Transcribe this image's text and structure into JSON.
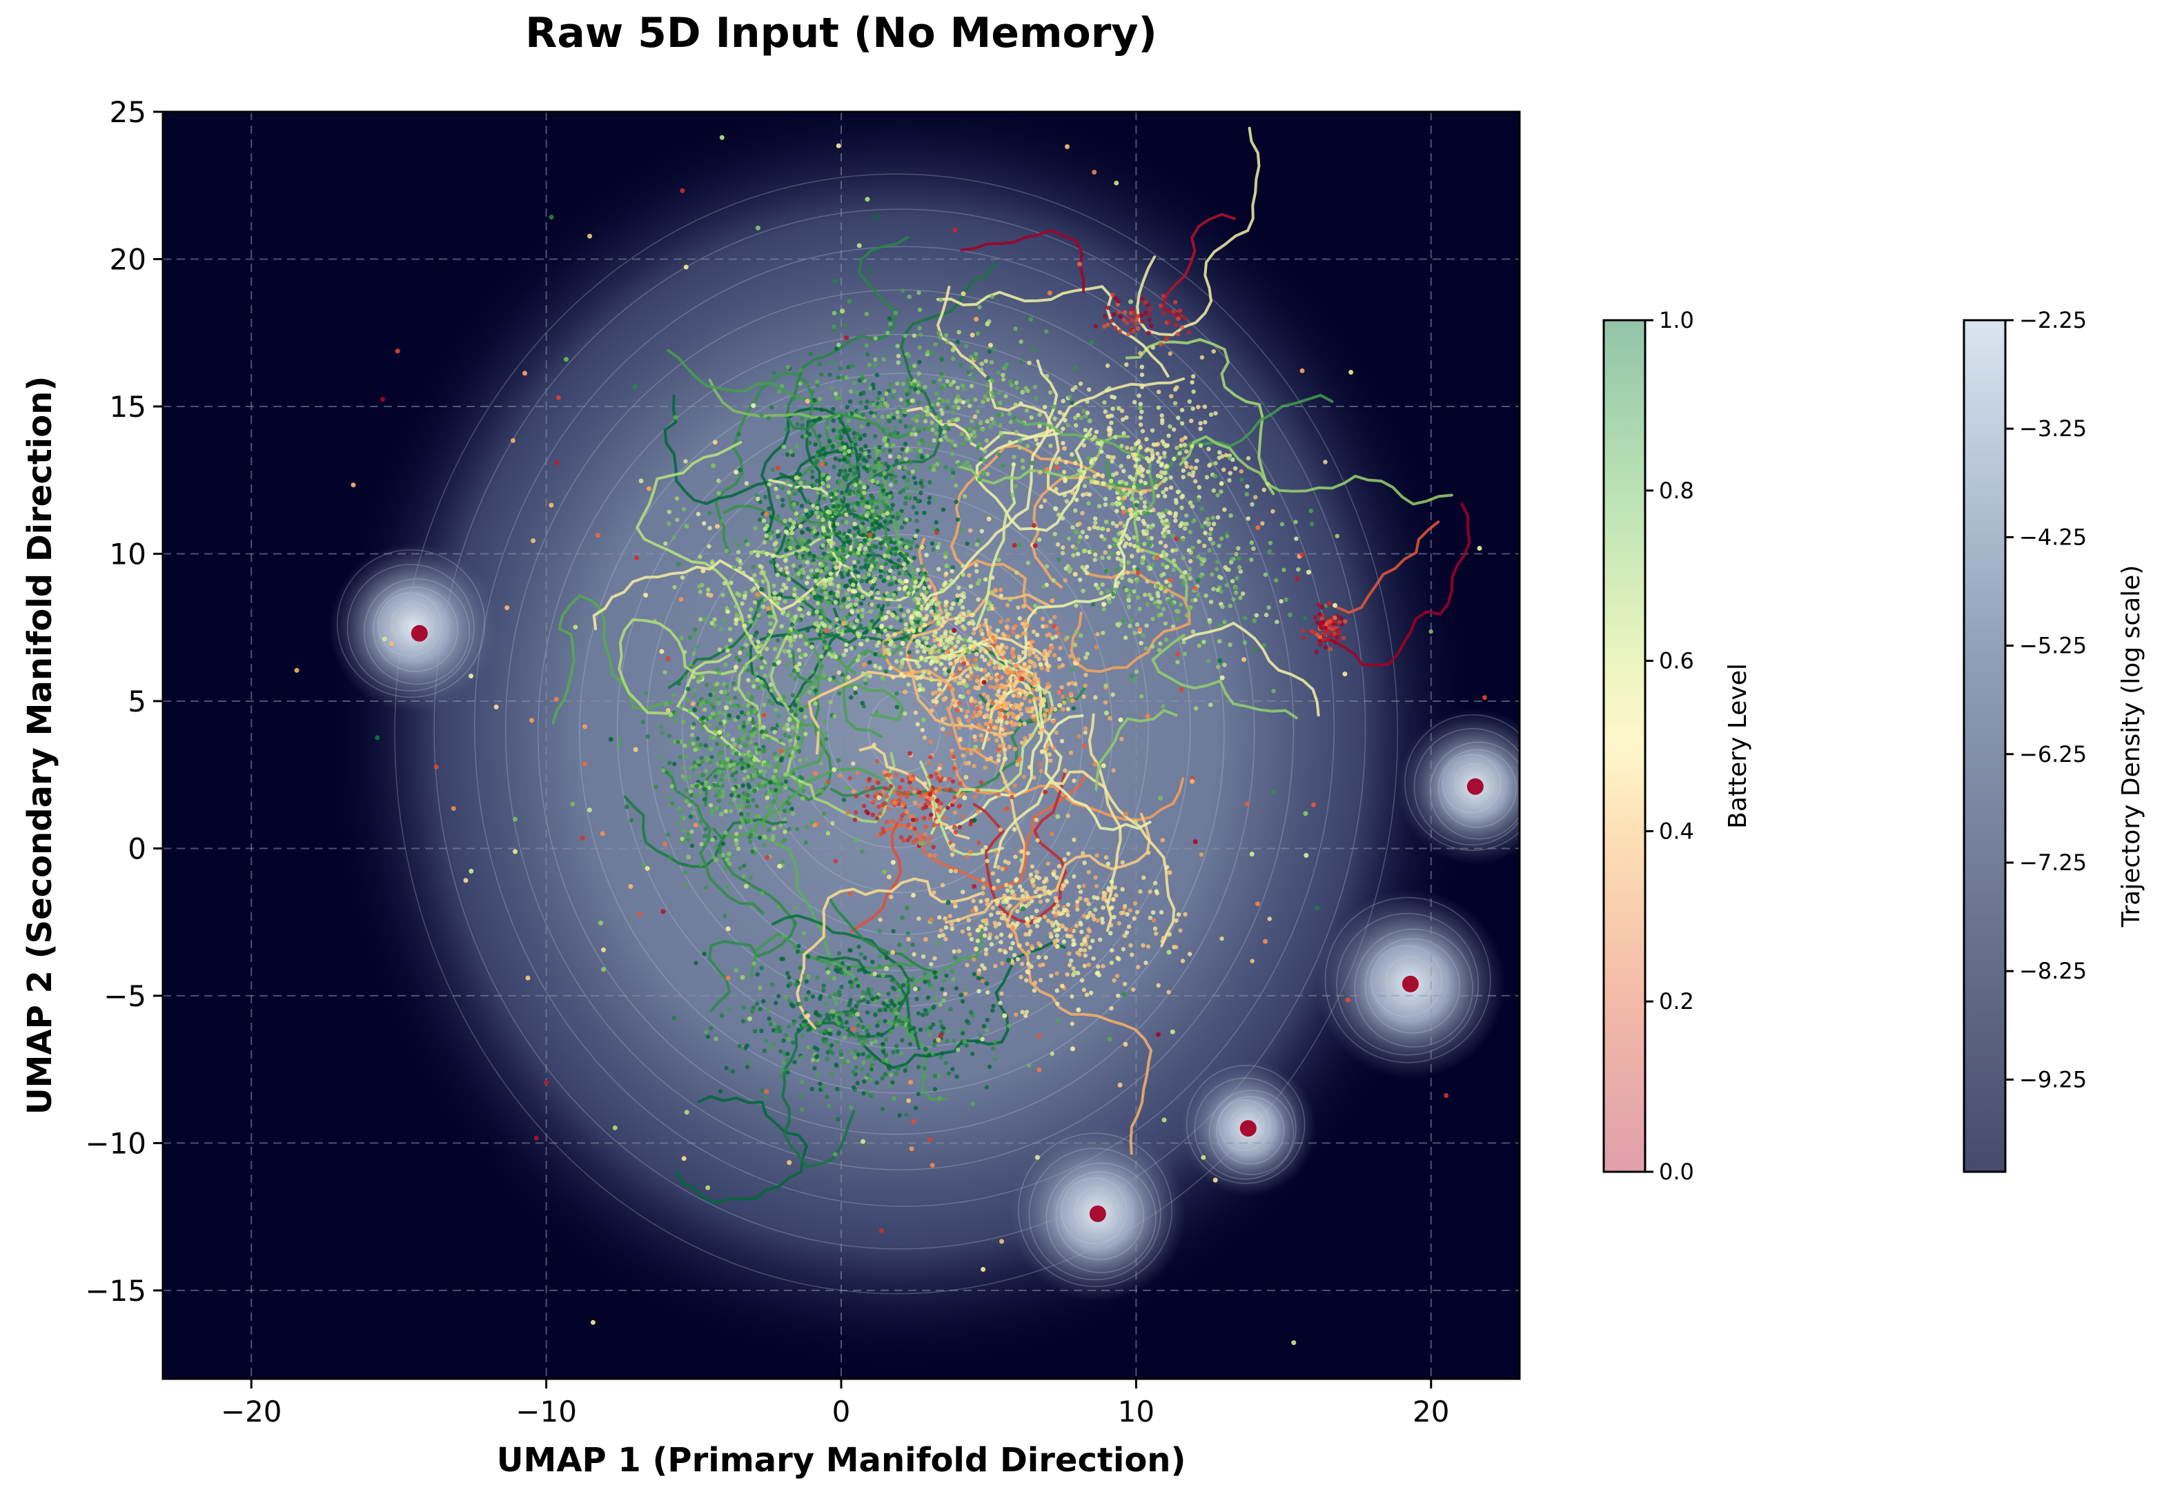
{
  "chart_data": {
    "type": "scatter",
    "title": "Raw 5D Input (No Memory)",
    "xlabel": "UMAP 1 (Primary Manifold Direction)",
    "ylabel": "UMAP 2 (Secondary Manifold Direction)",
    "xlim": [
      -23,
      23
    ],
    "ylim": [
      -18,
      25
    ],
    "x_ticks": [
      -20,
      -10,
      0,
      10,
      20
    ],
    "y_ticks": [
      -15,
      -10,
      -5,
      0,
      5,
      10,
      15,
      20,
      25
    ],
    "x_tick_labels": [
      "−20",
      "−10",
      "0",
      "10",
      "20"
    ],
    "y_tick_labels": [
      "−15",
      "−10",
      "−5",
      "0",
      "5",
      "10",
      "15",
      "20",
      "25"
    ],
    "grid": true,
    "background_color": "#03032a",
    "colorbars": [
      {
        "label": "Battery Level",
        "range": [
          0.0,
          1.0
        ],
        "ticks": [
          0.0,
          0.2,
          0.4,
          0.6,
          0.8,
          1.0
        ],
        "tick_labels": [
          "0.0",
          "0.2",
          "0.4",
          "0.6",
          "0.8",
          "1.0"
        ],
        "colors": [
          "#e0a0ac",
          "#f6c3a8",
          "#fdf5c8",
          "#dcefb2",
          "#a8d8b0",
          "#93c4a8"
        ]
      },
      {
        "label": "Trajectory Density (log scale)",
        "range": [
          -10.1,
          -2.25
        ],
        "ticks": [
          -9.25,
          -8.25,
          -7.25,
          -6.25,
          -5.25,
          -4.25,
          -3.25,
          -2.25
        ],
        "tick_labels": [
          "−9.25",
          "−8.25",
          "−7.25",
          "−6.25",
          "−5.25",
          "−4.25",
          "−3.25",
          "−2.25"
        ],
        "colors": [
          "#4a4e70",
          "#6a7590",
          "#8c9cb4",
          "#b7c9dc",
          "#d9e5ef"
        ]
      }
    ],
    "density_blobs": [
      {
        "x": 2,
        "y": 4,
        "rx": 17,
        "ry": 19,
        "level": 0.55
      },
      {
        "x": -14.5,
        "y": 7.5,
        "rx": 2.5,
        "ry": 2.5,
        "level": 0.45
      },
      {
        "x": 19.3,
        "y": -4.6,
        "rx": 2.8,
        "ry": 2.8,
        "level": 0.6
      },
      {
        "x": 21.5,
        "y": 2.1,
        "rx": 2.3,
        "ry": 2.3,
        "level": 0.55
      },
      {
        "x": 8.7,
        "y": -12.4,
        "rx": 2.6,
        "ry": 2.6,
        "level": 0.6
      },
      {
        "x": 13.8,
        "y": -9.5,
        "rx": 2,
        "ry": 2,
        "level": 0.5
      }
    ],
    "hotspots": [
      {
        "x": 19.3,
        "y": -4.6,
        "battery": 0.0
      },
      {
        "x": 21.5,
        "y": 2.1,
        "battery": 0.0
      },
      {
        "x": 8.7,
        "y": -12.4,
        "battery": 0.0
      },
      {
        "x": 13.8,
        "y": -9.5,
        "battery": 0.0
      },
      {
        "x": -14.3,
        "y": 7.3,
        "battery": 0.0
      }
    ],
    "clusters": [
      {
        "x": 0.5,
        "y": 11,
        "sx": 2.2,
        "sy": 4,
        "battery": 0.95,
        "n": 900
      },
      {
        "x": -3.5,
        "y": 3,
        "sx": 2.2,
        "sy": 3,
        "battery": 0.85,
        "n": 600
      },
      {
        "x": -1.5,
        "y": 9,
        "sx": 3,
        "sy": 3,
        "battery": 0.7,
        "n": 400
      },
      {
        "x": 5.5,
        "y": 5.5,
        "sx": 2.2,
        "sy": 2.2,
        "battery": 0.35,
        "n": 550
      },
      {
        "x": 10,
        "y": 12.5,
        "sx": 3,
        "sy": 3,
        "battery": 0.55,
        "n": 450
      },
      {
        "x": 3,
        "y": 7.5,
        "sx": 2,
        "sy": 2,
        "battery": 0.6,
        "n": 300
      },
      {
        "x": 2.5,
        "y": 1.5,
        "sx": 2,
        "sy": 1.2,
        "battery": 0.15,
        "n": 200
      },
      {
        "x": 0.5,
        "y": -6,
        "sx": 3.5,
        "sy": 2.2,
        "battery": 0.95,
        "n": 500
      },
      {
        "x": 7,
        "y": -2.5,
        "sx": 3.5,
        "sy": 2.2,
        "battery": 0.45,
        "n": 450
      },
      {
        "x": 3.5,
        "y": 15,
        "sx": 3,
        "sy": 2.5,
        "battery": 0.8,
        "n": 350
      },
      {
        "x": 11,
        "y": 9,
        "sx": 3.5,
        "sy": 3,
        "battery": 0.75,
        "n": 300
      },
      {
        "x": 16.5,
        "y": 7.5,
        "sx": 0.5,
        "sy": 0.5,
        "battery": 0.05,
        "n": 80
      },
      {
        "x": 10,
        "y": 18,
        "sx": 1.3,
        "sy": 0.7,
        "battery": 0.05,
        "n": 60
      }
    ]
  }
}
